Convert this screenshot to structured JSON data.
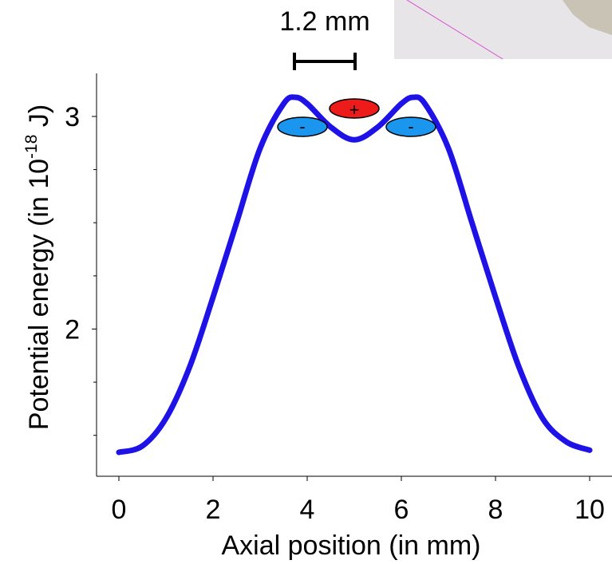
{
  "chart_data": {
    "type": "line",
    "title": "",
    "xlabel": "Axial position (in mm)",
    "ylabel_main": "Potential energy (in 10",
    "ylabel_exp": "-18",
    "ylabel_tail": " J)",
    "xlim": [
      0,
      10
    ],
    "ylim": [
      1.33,
      3.18
    ],
    "xticks": [
      0,
      2,
      4,
      6,
      8,
      10
    ],
    "xtick_labels": [
      "0",
      "2",
      "4",
      "6",
      "8",
      "10"
    ],
    "yticks_major": [
      2,
      3
    ],
    "ytick_labels": [
      "2",
      "3"
    ],
    "yticks_minor": [
      1.5,
      1.75,
      2.25,
      2.5,
      2.75
    ],
    "grid": false,
    "line_color": "#1e12e6",
    "series": [
      {
        "name": "",
        "x": [
          0,
          0.5,
          1,
          1.5,
          2,
          2.5,
          3,
          3.5,
          3.75,
          4,
          4.5,
          5,
          5.5,
          6,
          6.25,
          6.5,
          7,
          7.5,
          8,
          8.5,
          9,
          9.5,
          10
        ],
        "y": [
          1.42,
          1.45,
          1.58,
          1.82,
          2.15,
          2.5,
          2.85,
          3.06,
          3.09,
          3.06,
          2.95,
          2.89,
          2.95,
          3.06,
          3.09,
          3.06,
          2.85,
          2.5,
          2.15,
          1.82,
          1.58,
          1.47,
          1.43
        ]
      }
    ],
    "annotations": {
      "scale_bar_label": "1.2 mm",
      "ion_center_label": "+",
      "ion_left_label": "-",
      "ion_right_label": "-",
      "positive_ion_color": "#ee1b1b",
      "negative_ion_color": "#1a96ee",
      "inset_bg_color": "#e7e5e7",
      "inset_line_color": "#d94ad1",
      "inset_texture_color": "#c9c3b6"
    }
  }
}
